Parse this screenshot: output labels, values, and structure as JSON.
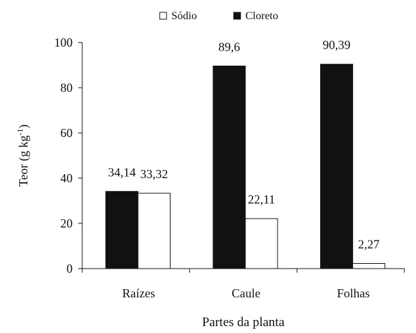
{
  "chart_data": {
    "type": "bar",
    "categories": [
      "Raízes",
      "Caule",
      "Folhas"
    ],
    "series": [
      {
        "name": "Cloreto",
        "values": [
          34.14,
          89.6,
          90.39
        ],
        "labels": [
          "34,14",
          "89,6",
          "90,39"
        ],
        "color": "#111111"
      },
      {
        "name": "Sódio",
        "values": [
          33.32,
          22.11,
          2.27
        ],
        "labels": [
          "33,32",
          "22,11",
          "2,27"
        ],
        "color": "#ffffff"
      }
    ],
    "legend_order": [
      "Sódio",
      "Cloreto"
    ],
    "legend_position": "top-center",
    "xlabel": "Partes da planta",
    "ylabel_main": "Teor (g kg",
    "ylabel_sup": "-1",
    "ylabel_close": ")",
    "ylim": [
      0,
      100
    ],
    "yticks": [
      0,
      20,
      40,
      60,
      80,
      100
    ],
    "grid": false
  }
}
